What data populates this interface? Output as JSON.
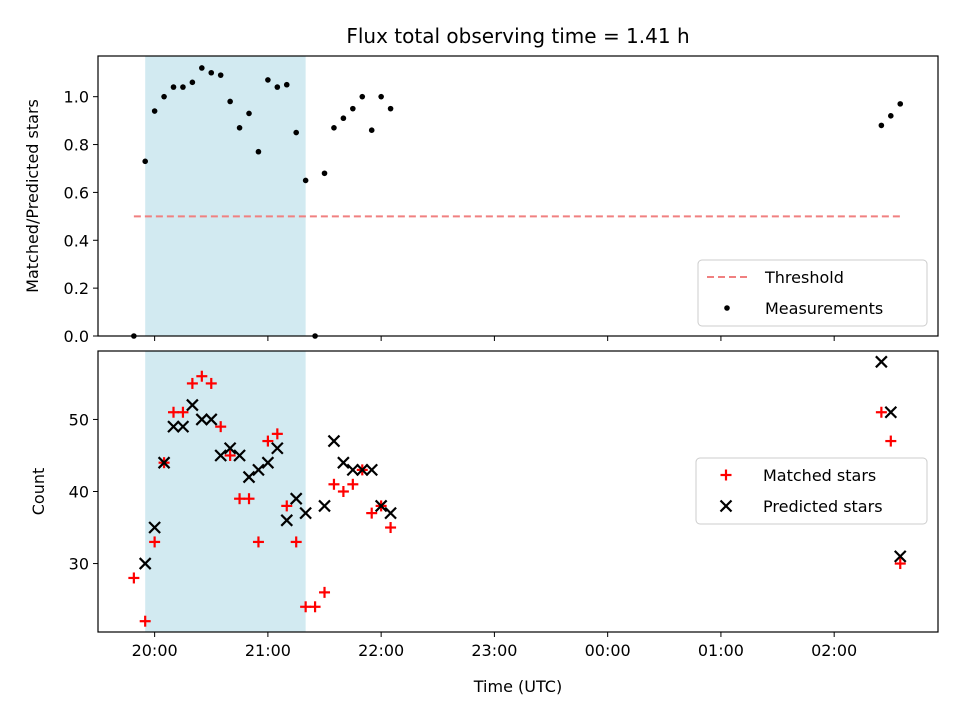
{
  "title": "Flux total observing time = 1.41 h",
  "chart_data": [
    {
      "type": "scatter",
      "ylabel": "Matched/Predicted stars",
      "ylim": [
        0,
        1.17
      ],
      "xlim": [
        "19:30",
        "02:55"
      ],
      "y_ticks": [
        "0.0",
        "0.2",
        "0.4",
        "0.6",
        "0.8",
        "1.0"
      ],
      "shaded_span": [
        "19:55",
        "21:20"
      ],
      "shade_color": "#add8e6",
      "threshold": 0.5,
      "threshold_color": "#f08080",
      "legend_position": "lower-right",
      "legend": {
        "threshold": "Threshold",
        "measurements": "Measurements"
      },
      "series": [
        {
          "name": "Measurements",
          "color": "#000000",
          "x": [
            "19:49",
            "19:55",
            "20:00",
            "20:05",
            "20:10",
            "20:15",
            "20:20",
            "20:25",
            "20:30",
            "20:35",
            "20:40",
            "20:45",
            "20:50",
            "20:55",
            "21:00",
            "21:05",
            "21:10",
            "21:15",
            "21:20",
            "21:25",
            "21:30",
            "21:35",
            "21:40",
            "21:45",
            "21:50",
            "21:55",
            "22:00",
            "22:05",
            "02:25",
            "02:30",
            "02:35"
          ],
          "y": [
            0.0,
            0.73,
            0.94,
            1.0,
            1.04,
            1.04,
            1.06,
            1.12,
            1.1,
            1.09,
            0.98,
            0.87,
            0.93,
            0.77,
            1.07,
            1.04,
            1.05,
            0.85,
            0.65,
            0.0,
            0.68,
            0.87,
            0.91,
            0.95,
            1.0,
            0.86,
            1.0,
            0.95,
            0.88,
            0.92,
            0.97
          ]
        }
      ]
    },
    {
      "type": "scatter",
      "ylabel": "Count",
      "xlabel": "Time (UTC)",
      "ylim": [
        20.5,
        59.5
      ],
      "xlim": [
        "19:30",
        "02:55"
      ],
      "y_ticks": [
        "30",
        "40",
        "50"
      ],
      "x_ticks": [
        "20:00",
        "21:00",
        "22:00",
        "23:00",
        "00:00",
        "01:00",
        "02:00"
      ],
      "shaded_span": [
        "19:55",
        "21:20"
      ],
      "shade_color": "#add8e6",
      "legend_position": "center-right",
      "series": [
        {
          "name": "Matched stars",
          "marker": "plus",
          "color": "#ff0000",
          "x": [
            "19:49",
            "19:55",
            "20:00",
            "20:05",
            "20:10",
            "20:15",
            "20:20",
            "20:25",
            "20:30",
            "20:35",
            "20:40",
            "20:45",
            "20:50",
            "20:55",
            "21:00",
            "21:05",
            "21:10",
            "21:15",
            "21:20",
            "21:25",
            "21:30",
            "21:35",
            "21:40",
            "21:45",
            "21:50",
            "21:55",
            "22:00",
            "22:05",
            "02:25",
            "02:30",
            "02:35"
          ],
          "y": [
            28,
            22,
            33,
            44,
            51,
            51,
            55,
            56,
            55,
            49,
            45,
            39,
            39,
            33,
            47,
            48,
            38,
            33,
            24,
            24,
            26,
            41,
            40,
            41,
            43,
            37,
            38,
            35,
            51,
            47,
            30
          ]
        },
        {
          "name": "Predicted stars",
          "marker": "x",
          "color": "#000000",
          "x": [
            "19:55",
            "20:00",
            "20:05",
            "20:10",
            "20:15",
            "20:20",
            "20:25",
            "20:30",
            "20:35",
            "20:40",
            "20:45",
            "20:50",
            "20:55",
            "21:00",
            "21:05",
            "21:10",
            "21:15",
            "21:20",
            "21:30",
            "21:35",
            "21:40",
            "21:45",
            "21:50",
            "21:55",
            "22:00",
            "22:05",
            "02:25",
            "02:30",
            "02:35"
          ],
          "y": [
            30,
            35,
            44,
            49,
            49,
            52,
            50,
            50,
            45,
            46,
            45,
            42,
            43,
            44,
            46,
            36,
            39,
            37,
            38,
            47,
            44,
            43,
            43,
            43,
            38,
            37,
            58,
            51,
            31
          ]
        }
      ]
    }
  ]
}
